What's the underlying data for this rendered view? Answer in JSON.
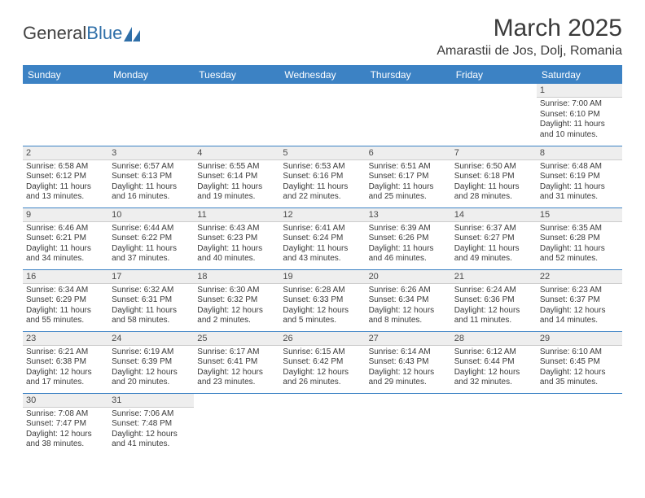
{
  "logo": {
    "text1": "General",
    "text2": "Blue"
  },
  "title": "March 2025",
  "location": "Amarastii de Jos, Dolj, Romania",
  "colors": {
    "header_bg": "#3c82c4",
    "header_text": "#ffffff",
    "daynum_bg": "#eeeeee",
    "border": "#3c82c4",
    "logo_blue": "#2f6fa8"
  },
  "weekdays": [
    "Sunday",
    "Monday",
    "Tuesday",
    "Wednesday",
    "Thursday",
    "Friday",
    "Saturday"
  ],
  "weeks": [
    [
      null,
      null,
      null,
      null,
      null,
      null,
      {
        "n": "1",
        "sunrise": "Sunrise: 7:00 AM",
        "sunset": "Sunset: 6:10 PM",
        "daylight": "Daylight: 11 hours and 10 minutes."
      }
    ],
    [
      {
        "n": "2",
        "sunrise": "Sunrise: 6:58 AM",
        "sunset": "Sunset: 6:12 PM",
        "daylight": "Daylight: 11 hours and 13 minutes."
      },
      {
        "n": "3",
        "sunrise": "Sunrise: 6:57 AM",
        "sunset": "Sunset: 6:13 PM",
        "daylight": "Daylight: 11 hours and 16 minutes."
      },
      {
        "n": "4",
        "sunrise": "Sunrise: 6:55 AM",
        "sunset": "Sunset: 6:14 PM",
        "daylight": "Daylight: 11 hours and 19 minutes."
      },
      {
        "n": "5",
        "sunrise": "Sunrise: 6:53 AM",
        "sunset": "Sunset: 6:16 PM",
        "daylight": "Daylight: 11 hours and 22 minutes."
      },
      {
        "n": "6",
        "sunrise": "Sunrise: 6:51 AM",
        "sunset": "Sunset: 6:17 PM",
        "daylight": "Daylight: 11 hours and 25 minutes."
      },
      {
        "n": "7",
        "sunrise": "Sunrise: 6:50 AM",
        "sunset": "Sunset: 6:18 PM",
        "daylight": "Daylight: 11 hours and 28 minutes."
      },
      {
        "n": "8",
        "sunrise": "Sunrise: 6:48 AM",
        "sunset": "Sunset: 6:19 PM",
        "daylight": "Daylight: 11 hours and 31 minutes."
      }
    ],
    [
      {
        "n": "9",
        "sunrise": "Sunrise: 6:46 AM",
        "sunset": "Sunset: 6:21 PM",
        "daylight": "Daylight: 11 hours and 34 minutes."
      },
      {
        "n": "10",
        "sunrise": "Sunrise: 6:44 AM",
        "sunset": "Sunset: 6:22 PM",
        "daylight": "Daylight: 11 hours and 37 minutes."
      },
      {
        "n": "11",
        "sunrise": "Sunrise: 6:43 AM",
        "sunset": "Sunset: 6:23 PM",
        "daylight": "Daylight: 11 hours and 40 minutes."
      },
      {
        "n": "12",
        "sunrise": "Sunrise: 6:41 AM",
        "sunset": "Sunset: 6:24 PM",
        "daylight": "Daylight: 11 hours and 43 minutes."
      },
      {
        "n": "13",
        "sunrise": "Sunrise: 6:39 AM",
        "sunset": "Sunset: 6:26 PM",
        "daylight": "Daylight: 11 hours and 46 minutes."
      },
      {
        "n": "14",
        "sunrise": "Sunrise: 6:37 AM",
        "sunset": "Sunset: 6:27 PM",
        "daylight": "Daylight: 11 hours and 49 minutes."
      },
      {
        "n": "15",
        "sunrise": "Sunrise: 6:35 AM",
        "sunset": "Sunset: 6:28 PM",
        "daylight": "Daylight: 11 hours and 52 minutes."
      }
    ],
    [
      {
        "n": "16",
        "sunrise": "Sunrise: 6:34 AM",
        "sunset": "Sunset: 6:29 PM",
        "daylight": "Daylight: 11 hours and 55 minutes."
      },
      {
        "n": "17",
        "sunrise": "Sunrise: 6:32 AM",
        "sunset": "Sunset: 6:31 PM",
        "daylight": "Daylight: 11 hours and 58 minutes."
      },
      {
        "n": "18",
        "sunrise": "Sunrise: 6:30 AM",
        "sunset": "Sunset: 6:32 PM",
        "daylight": "Daylight: 12 hours and 2 minutes."
      },
      {
        "n": "19",
        "sunrise": "Sunrise: 6:28 AM",
        "sunset": "Sunset: 6:33 PM",
        "daylight": "Daylight: 12 hours and 5 minutes."
      },
      {
        "n": "20",
        "sunrise": "Sunrise: 6:26 AM",
        "sunset": "Sunset: 6:34 PM",
        "daylight": "Daylight: 12 hours and 8 minutes."
      },
      {
        "n": "21",
        "sunrise": "Sunrise: 6:24 AM",
        "sunset": "Sunset: 6:36 PM",
        "daylight": "Daylight: 12 hours and 11 minutes."
      },
      {
        "n": "22",
        "sunrise": "Sunrise: 6:23 AM",
        "sunset": "Sunset: 6:37 PM",
        "daylight": "Daylight: 12 hours and 14 minutes."
      }
    ],
    [
      {
        "n": "23",
        "sunrise": "Sunrise: 6:21 AM",
        "sunset": "Sunset: 6:38 PM",
        "daylight": "Daylight: 12 hours and 17 minutes."
      },
      {
        "n": "24",
        "sunrise": "Sunrise: 6:19 AM",
        "sunset": "Sunset: 6:39 PM",
        "daylight": "Daylight: 12 hours and 20 minutes."
      },
      {
        "n": "25",
        "sunrise": "Sunrise: 6:17 AM",
        "sunset": "Sunset: 6:41 PM",
        "daylight": "Daylight: 12 hours and 23 minutes."
      },
      {
        "n": "26",
        "sunrise": "Sunrise: 6:15 AM",
        "sunset": "Sunset: 6:42 PM",
        "daylight": "Daylight: 12 hours and 26 minutes."
      },
      {
        "n": "27",
        "sunrise": "Sunrise: 6:14 AM",
        "sunset": "Sunset: 6:43 PM",
        "daylight": "Daylight: 12 hours and 29 minutes."
      },
      {
        "n": "28",
        "sunrise": "Sunrise: 6:12 AM",
        "sunset": "Sunset: 6:44 PM",
        "daylight": "Daylight: 12 hours and 32 minutes."
      },
      {
        "n": "29",
        "sunrise": "Sunrise: 6:10 AM",
        "sunset": "Sunset: 6:45 PM",
        "daylight": "Daylight: 12 hours and 35 minutes."
      }
    ],
    [
      {
        "n": "30",
        "sunrise": "Sunrise: 7:08 AM",
        "sunset": "Sunset: 7:47 PM",
        "daylight": "Daylight: 12 hours and 38 minutes."
      },
      {
        "n": "31",
        "sunrise": "Sunrise: 7:06 AM",
        "sunset": "Sunset: 7:48 PM",
        "daylight": "Daylight: 12 hours and 41 minutes."
      },
      null,
      null,
      null,
      null,
      null
    ]
  ]
}
